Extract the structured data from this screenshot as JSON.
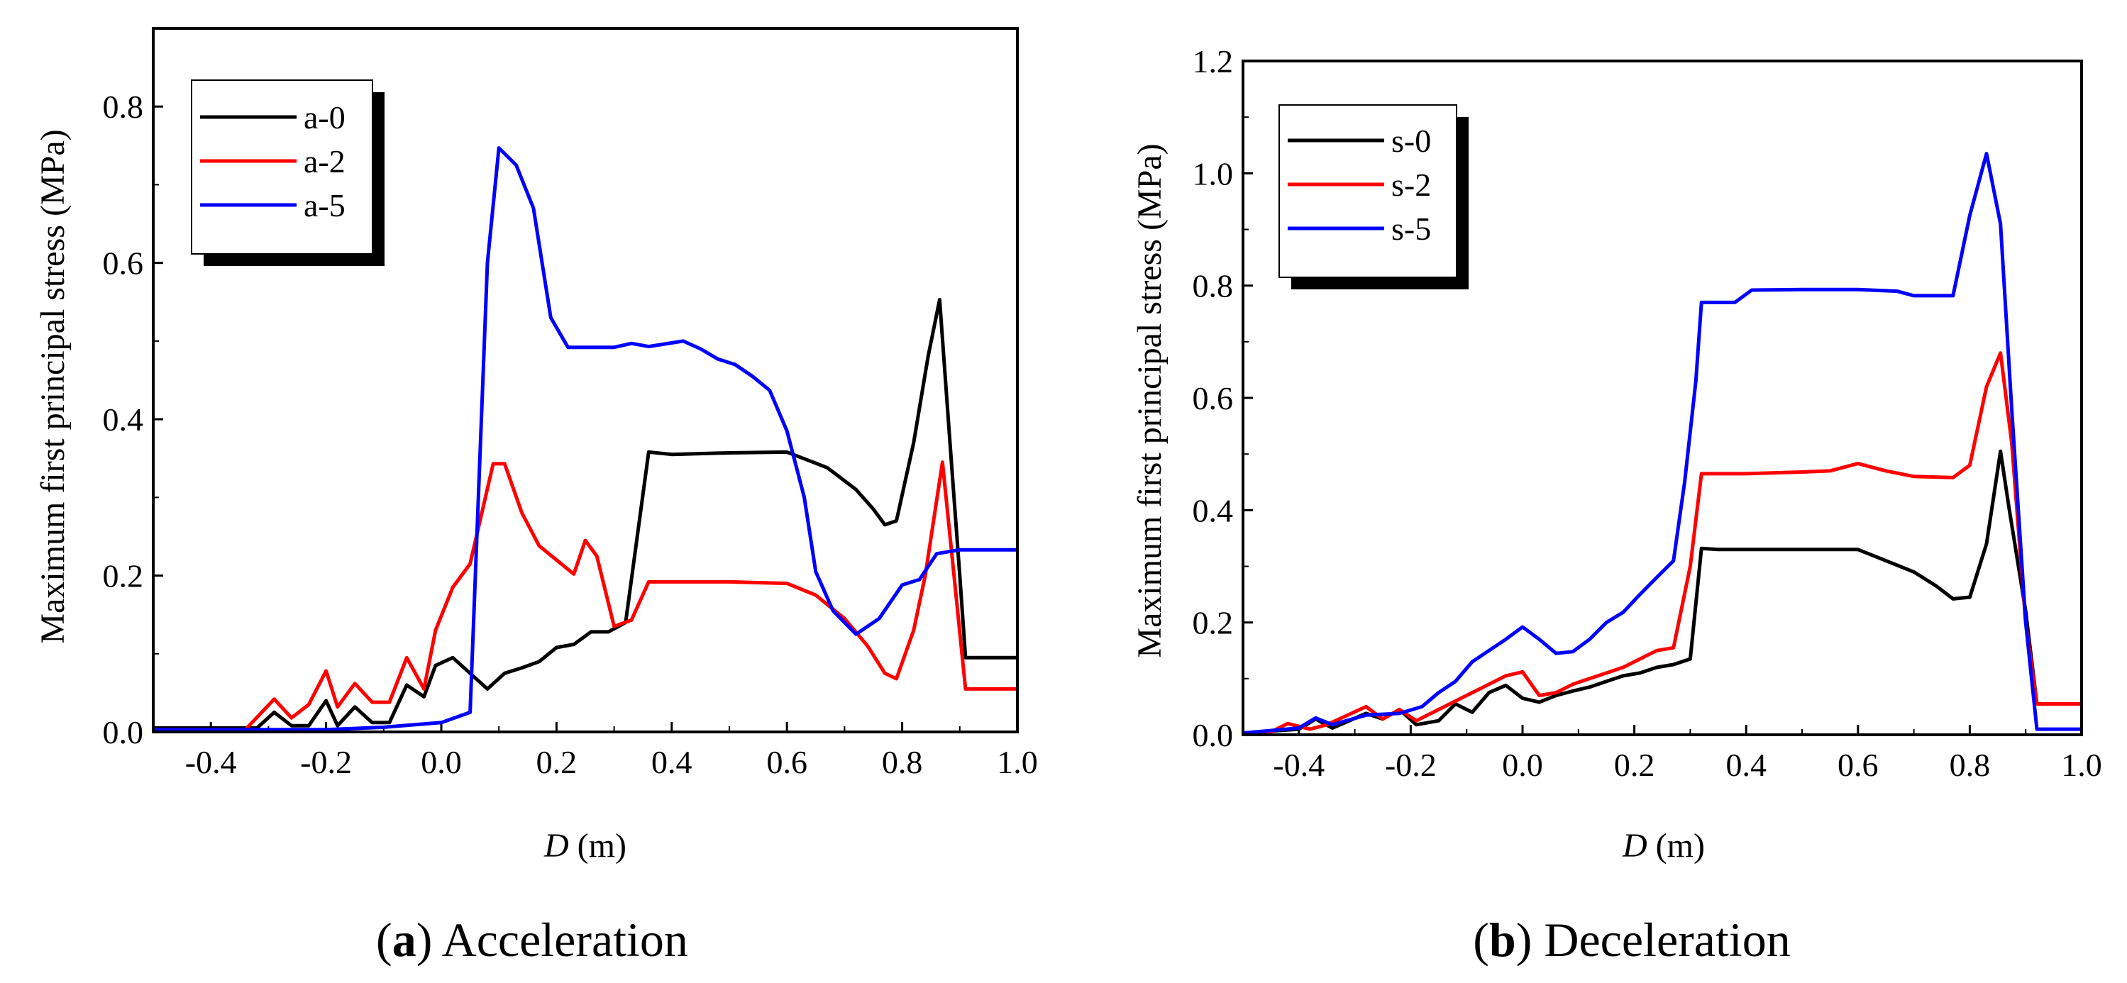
{
  "chart_data": [
    {
      "type": "line",
      "panel": "a",
      "caption_letter": "a",
      "caption_text": ") Acceleration",
      "caption_open": "(",
      "xlabel_var": "D",
      "xlabel_unit": " (m)",
      "ylabel": "Maximum first principal stress (MPa)",
      "xlim": [
        -0.5,
        1.0
      ],
      "ylim": [
        0.0,
        0.9
      ],
      "xticks": [
        -0.4,
        -0.2,
        0.0,
        0.2,
        0.4,
        0.6,
        0.8,
        1.0
      ],
      "xtick_labels": [
        "-0.4",
        "-0.2",
        "0.0",
        "0.2",
        "0.4",
        "0.6",
        "0.8",
        "1.0"
      ],
      "yticks": [
        0.0,
        0.2,
        0.4,
        0.6,
        0.8
      ],
      "ytick_labels": [
        "0.0",
        "0.2",
        "0.4",
        "0.6",
        "0.8"
      ],
      "legend_position": "top-left",
      "series": [
        {
          "name": "a-0",
          "color": "#000000",
          "points": [
            [
              -0.5,
              0.005
            ],
            [
              -0.32,
              0.005
            ],
            [
              -0.29,
              0.025
            ],
            [
              -0.26,
              0.008
            ],
            [
              -0.23,
              0.008
            ],
            [
              -0.2,
              0.04
            ],
            [
              -0.18,
              0.008
            ],
            [
              -0.15,
              0.032
            ],
            [
              -0.12,
              0.012
            ],
            [
              -0.09,
              0.012
            ],
            [
              -0.06,
              0.06
            ],
            [
              -0.03,
              0.045
            ],
            [
              -0.01,
              0.085
            ],
            [
              0.02,
              0.095
            ],
            [
              0.05,
              0.075
            ],
            [
              0.08,
              0.055
            ],
            [
              0.11,
              0.075
            ],
            [
              0.14,
              0.082
            ],
            [
              0.17,
              0.09
            ],
            [
              0.2,
              0.108
            ],
            [
              0.23,
              0.112
            ],
            [
              0.26,
              0.128
            ],
            [
              0.29,
              0.128
            ],
            [
              0.32,
              0.14
            ],
            [
              0.36,
              0.358
            ],
            [
              0.4,
              0.355
            ],
            [
              0.5,
              0.357
            ],
            [
              0.6,
              0.358
            ],
            [
              0.67,
              0.338
            ],
            [
              0.72,
              0.31
            ],
            [
              0.75,
              0.285
            ],
            [
              0.77,
              0.265
            ],
            [
              0.79,
              0.27
            ],
            [
              0.82,
              0.37
            ],
            [
              0.845,
              0.48
            ],
            [
              0.865,
              0.553
            ],
            [
              0.885,
              0.35
            ],
            [
              0.9,
              0.2
            ],
            [
              0.91,
              0.095
            ],
            [
              1.0,
              0.095
            ]
          ]
        },
        {
          "name": "a-2",
          "color": "#ff0000",
          "points": [
            [
              -0.5,
              0.003
            ],
            [
              -0.34,
              0.003
            ],
            [
              -0.29,
              0.042
            ],
            [
              -0.26,
              0.018
            ],
            [
              -0.23,
              0.035
            ],
            [
              -0.2,
              0.078
            ],
            [
              -0.18,
              0.032
            ],
            [
              -0.15,
              0.062
            ],
            [
              -0.12,
              0.038
            ],
            [
              -0.09,
              0.038
            ],
            [
              -0.06,
              0.095
            ],
            [
              -0.03,
              0.055
            ],
            [
              -0.01,
              0.13
            ],
            [
              0.02,
              0.185
            ],
            [
              0.05,
              0.215
            ],
            [
              0.09,
              0.343
            ],
            [
              0.11,
              0.343
            ],
            [
              0.14,
              0.28
            ],
            [
              0.17,
              0.238
            ],
            [
              0.2,
              0.22
            ],
            [
              0.23,
              0.202
            ],
            [
              0.25,
              0.245
            ],
            [
              0.27,
              0.225
            ],
            [
              0.3,
              0.135
            ],
            [
              0.33,
              0.143
            ],
            [
              0.36,
              0.192
            ],
            [
              0.5,
              0.192
            ],
            [
              0.6,
              0.19
            ],
            [
              0.65,
              0.175
            ],
            [
              0.7,
              0.145
            ],
            [
              0.74,
              0.11
            ],
            [
              0.77,
              0.075
            ],
            [
              0.79,
              0.068
            ],
            [
              0.82,
              0.13
            ],
            [
              0.84,
              0.2
            ],
            [
              0.87,
              0.345
            ],
            [
              0.89,
              0.2
            ],
            [
              0.91,
              0.055
            ],
            [
              1.0,
              0.055
            ]
          ]
        },
        {
          "name": "a-5",
          "color": "#0000ff",
          "points": [
            [
              -0.5,
              0.003
            ],
            [
              -0.2,
              0.003
            ],
            [
              -0.1,
              0.006
            ],
            [
              0.0,
              0.012
            ],
            [
              0.05,
              0.025
            ],
            [
              0.08,
              0.6
            ],
            [
              0.1,
              0.747
            ],
            [
              0.13,
              0.725
            ],
            [
              0.16,
              0.67
            ],
            [
              0.19,
              0.53
            ],
            [
              0.22,
              0.492
            ],
            [
              0.3,
              0.492
            ],
            [
              0.33,
              0.497
            ],
            [
              0.36,
              0.493
            ],
            [
              0.42,
              0.5
            ],
            [
              0.45,
              0.49
            ],
            [
              0.48,
              0.477
            ],
            [
              0.51,
              0.47
            ],
            [
              0.54,
              0.455
            ],
            [
              0.57,
              0.437
            ],
            [
              0.6,
              0.385
            ],
            [
              0.63,
              0.3
            ],
            [
              0.65,
              0.205
            ],
            [
              0.68,
              0.155
            ],
            [
              0.72,
              0.125
            ],
            [
              0.76,
              0.145
            ],
            [
              0.8,
              0.188
            ],
            [
              0.83,
              0.195
            ],
            [
              0.86,
              0.228
            ],
            [
              0.9,
              0.233
            ],
            [
              1.0,
              0.233
            ]
          ]
        }
      ]
    },
    {
      "type": "line",
      "panel": "b",
      "caption_letter": "b",
      "caption_text": ") Deceleration",
      "caption_open": "(",
      "xlabel_var": "D",
      "xlabel_unit": " (m)",
      "ylabel": "Maximum first principal stress (MPa)",
      "xlim": [
        -0.5,
        1.0
      ],
      "ylim": [
        0.0,
        1.2
      ],
      "xticks": [
        -0.4,
        -0.2,
        0.0,
        0.2,
        0.4,
        0.6,
        0.8,
        1.0
      ],
      "xtick_labels": [
        "-0.4",
        "-0.2",
        "0.0",
        "0.2",
        "0.4",
        "0.6",
        "0.8",
        "1.0"
      ],
      "yticks": [
        0.0,
        0.2,
        0.4,
        0.6,
        0.8,
        1.0,
        1.2
      ],
      "ytick_labels": [
        "0.0",
        "0.2",
        "0.4",
        "0.6",
        "0.8",
        "1.0",
        "1.2"
      ],
      "legend_position": "top-left",
      "series": [
        {
          "name": "s-0",
          "color": "#000000",
          "points": [
            [
              -0.5,
              0.003
            ],
            [
              -0.4,
              0.01
            ],
            [
              -0.37,
              0.028
            ],
            [
              -0.34,
              0.012
            ],
            [
              -0.28,
              0.038
            ],
            [
              -0.25,
              0.028
            ],
            [
              -0.22,
              0.045
            ],
            [
              -0.19,
              0.018
            ],
            [
              -0.15,
              0.025
            ],
            [
              -0.12,
              0.055
            ],
            [
              -0.09,
              0.04
            ],
            [
              -0.06,
              0.075
            ],
            [
              -0.03,
              0.088
            ],
            [
              0.0,
              0.065
            ],
            [
              0.03,
              0.058
            ],
            [
              0.06,
              0.07
            ],
            [
              0.09,
              0.078
            ],
            [
              0.12,
              0.085
            ],
            [
              0.15,
              0.095
            ],
            [
              0.18,
              0.105
            ],
            [
              0.21,
              0.11
            ],
            [
              0.24,
              0.12
            ],
            [
              0.27,
              0.125
            ],
            [
              0.3,
              0.135
            ],
            [
              0.32,
              0.332
            ],
            [
              0.35,
              0.33
            ],
            [
              0.5,
              0.33
            ],
            [
              0.6,
              0.33
            ],
            [
              0.65,
              0.31
            ],
            [
              0.7,
              0.29
            ],
            [
              0.74,
              0.265
            ],
            [
              0.77,
              0.242
            ],
            [
              0.8,
              0.245
            ],
            [
              0.83,
              0.34
            ],
            [
              0.855,
              0.505
            ],
            [
              0.87,
              0.405
            ],
            [
              0.9,
              0.22
            ],
            [
              0.92,
              0.055
            ],
            [
              1.0,
              0.055
            ]
          ]
        },
        {
          "name": "s-2",
          "color": "#ff0000",
          "points": [
            [
              -0.5,
              0.003
            ],
            [
              -0.45,
              0.005
            ],
            [
              -0.42,
              0.02
            ],
            [
              -0.38,
              0.01
            ],
            [
              -0.35,
              0.018
            ],
            [
              -0.28,
              0.05
            ],
            [
              -0.25,
              0.028
            ],
            [
              -0.22,
              0.045
            ],
            [
              -0.19,
              0.025
            ],
            [
              -0.15,
              0.045
            ],
            [
              -0.12,
              0.06
            ],
            [
              -0.09,
              0.075
            ],
            [
              -0.06,
              0.09
            ],
            [
              -0.03,
              0.105
            ],
            [
              0.0,
              0.112
            ],
            [
              0.03,
              0.07
            ],
            [
              0.06,
              0.075
            ],
            [
              0.09,
              0.09
            ],
            [
              0.12,
              0.1
            ],
            [
              0.15,
              0.11
            ],
            [
              0.18,
              0.12
            ],
            [
              0.21,
              0.135
            ],
            [
              0.24,
              0.15
            ],
            [
              0.27,
              0.155
            ],
            [
              0.3,
              0.3
            ],
            [
              0.32,
              0.465
            ],
            [
              0.4,
              0.465
            ],
            [
              0.5,
              0.468
            ],
            [
              0.55,
              0.47
            ],
            [
              0.6,
              0.483
            ],
            [
              0.65,
              0.47
            ],
            [
              0.7,
              0.46
            ],
            [
              0.77,
              0.458
            ],
            [
              0.8,
              0.48
            ],
            [
              0.83,
              0.62
            ],
            [
              0.855,
              0.68
            ],
            [
              0.875,
              0.52
            ],
            [
              0.9,
              0.2
            ],
            [
              0.92,
              0.055
            ],
            [
              1.0,
              0.055
            ]
          ]
        },
        {
          "name": "s-5",
          "color": "#0000ff",
          "points": [
            [
              -0.5,
              0.003
            ],
            [
              -0.4,
              0.012
            ],
            [
              -0.37,
              0.03
            ],
            [
              -0.34,
              0.018
            ],
            [
              -0.28,
              0.035
            ],
            [
              -0.22,
              0.038
            ],
            [
              -0.18,
              0.05
            ],
            [
              -0.15,
              0.075
            ],
            [
              -0.12,
              0.095
            ],
            [
              -0.09,
              0.13
            ],
            [
              -0.06,
              0.15
            ],
            [
              -0.03,
              0.17
            ],
            [
              0.0,
              0.192
            ],
            [
              0.03,
              0.17
            ],
            [
              0.06,
              0.145
            ],
            [
              0.09,
              0.148
            ],
            [
              0.12,
              0.17
            ],
            [
              0.15,
              0.2
            ],
            [
              0.18,
              0.218
            ],
            [
              0.21,
              0.25
            ],
            [
              0.24,
              0.28
            ],
            [
              0.27,
              0.31
            ],
            [
              0.29,
              0.45
            ],
            [
              0.31,
              0.63
            ],
            [
              0.32,
              0.77
            ],
            [
              0.38,
              0.77
            ],
            [
              0.41,
              0.792
            ],
            [
              0.5,
              0.793
            ],
            [
              0.6,
              0.793
            ],
            [
              0.67,
              0.79
            ],
            [
              0.7,
              0.782
            ],
            [
              0.77,
              0.782
            ],
            [
              0.8,
              0.925
            ],
            [
              0.83,
              1.035
            ],
            [
              0.855,
              0.91
            ],
            [
              0.875,
              0.58
            ],
            [
              0.9,
              0.2
            ],
            [
              0.92,
              0.01
            ],
            [
              1.0,
              0.01
            ]
          ]
        }
      ]
    }
  ]
}
